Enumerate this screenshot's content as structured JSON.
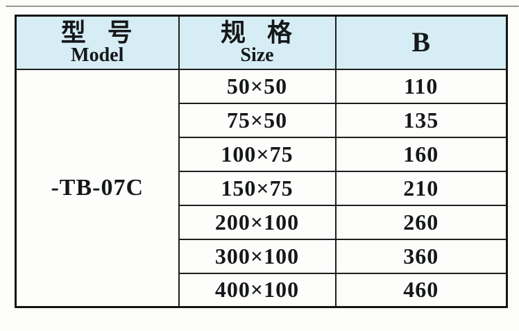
{
  "document": {
    "type": "scanned-spec-table",
    "colors": {
      "header_bg": "#d7edf5",
      "cell_bg": "#fdfdfb",
      "border": "#1d1d1b",
      "text": "#15181a",
      "page_bg": "#fcfdfb"
    }
  },
  "table": {
    "headers": {
      "model_zh": "型 号",
      "model_en": "Model",
      "size_zh": "规 格",
      "size_en": "Size",
      "b": "B"
    },
    "model_value": "-TB-07C",
    "rows": [
      {
        "size": "50×50",
        "b": "110"
      },
      {
        "size": "75×50",
        "b": "135"
      },
      {
        "size": "100×75",
        "b": "160"
      },
      {
        "size": "150×75",
        "b": "210"
      },
      {
        "size": "200×100",
        "b": "260"
      },
      {
        "size": "300×100",
        "b": "360"
      },
      {
        "size": "400×100",
        "b": "460"
      }
    ]
  }
}
